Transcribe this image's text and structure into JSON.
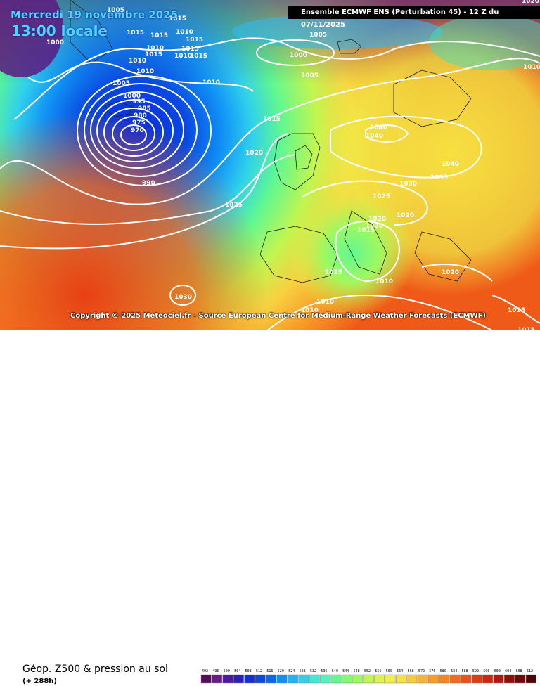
{
  "header": {
    "date": "Mercredi 19 novembre 2025",
    "local_time": "13:00 locale",
    "run_info": "Ensemble ECMWF ENS  (Perturbation 45)  -  12 Z du 07/11/2025"
  },
  "copyright": "Copyright © 2025 Meteociel.fr - Source European Centre for Medium-Range Weather Forecasts (ECMWF)",
  "footer": {
    "field_title": "Géop. Z500 & pression au sol",
    "lead_time": "(+ 288h)"
  },
  "legend": {
    "values": [
      "492",
      "496",
      "500",
      "504",
      "508",
      "512",
      "516",
      "520",
      "524",
      "528",
      "532",
      "536",
      "540",
      "544",
      "548",
      "552",
      "556",
      "560",
      "564",
      "568",
      "572",
      "576",
      "580",
      "584",
      "588",
      "592",
      "596",
      "600",
      "604",
      "608",
      "612"
    ],
    "colors": [
      "#5a0a5a",
      "#6a1b8a",
      "#4b1aa0",
      "#2a20b8",
      "#1030d0",
      "#0a48e0",
      "#0a68f0",
      "#1090f5",
      "#20b4f5",
      "#30d0ec",
      "#40e8d8",
      "#50f4b8",
      "#60f890",
      "#80fa70",
      "#a0f860",
      "#c0f650",
      "#dcf448",
      "#f0f048",
      "#f8e040",
      "#f8cc38",
      "#f8b430",
      "#f89c28",
      "#f88420",
      "#f46a1c",
      "#ec5218",
      "#e03c14",
      "#cc2810",
      "#b0180c",
      "#901008",
      "#700808",
      "#500404"
    ]
  },
  "isobars": [
    {
      "label": "1005"
    },
    {
      "label": "1015"
    },
    {
      "label": "1000"
    },
    {
      "label": "1015"
    },
    {
      "label": "1015"
    },
    {
      "label": "1010"
    },
    {
      "label": "1015"
    },
    {
      "label": "1010"
    },
    {
      "label": "1015"
    },
    {
      "label": "1015"
    },
    {
      "label": "1010"
    },
    {
      "label": "1015"
    },
    {
      "label": "1010"
    },
    {
      "label": "1010"
    },
    {
      "label": "1005"
    },
    {
      "label": "1010"
    },
    {
      "label": "1005"
    },
    {
      "label": "1000"
    },
    {
      "label": "1005"
    },
    {
      "label": "1000"
    },
    {
      "label": "995"
    },
    {
      "label": "985"
    },
    {
      "label": "980"
    },
    {
      "label": "975"
    },
    {
      "label": "970"
    },
    {
      "label": "990"
    },
    {
      "label": "1015"
    },
    {
      "label": "1020"
    },
    {
      "label": "1025"
    },
    {
      "label": "1030"
    },
    {
      "label": "1040"
    },
    {
      "label": "1040"
    },
    {
      "label": "1040"
    },
    {
      "label": "1035"
    },
    {
      "label": "1030"
    },
    {
      "label": "1025"
    },
    {
      "label": "1020"
    },
    {
      "label": "1020"
    },
    {
      "label": "1020"
    },
    {
      "label": "1015"
    },
    {
      "label": "1015"
    },
    {
      "label": "1020"
    },
    {
      "label": "1010"
    },
    {
      "label": "1010"
    },
    {
      "label": "1010"
    },
    {
      "label": "1015"
    },
    {
      "label": "1015"
    },
    {
      "label": "1010"
    },
    {
      "label": "1020"
    }
  ]
}
